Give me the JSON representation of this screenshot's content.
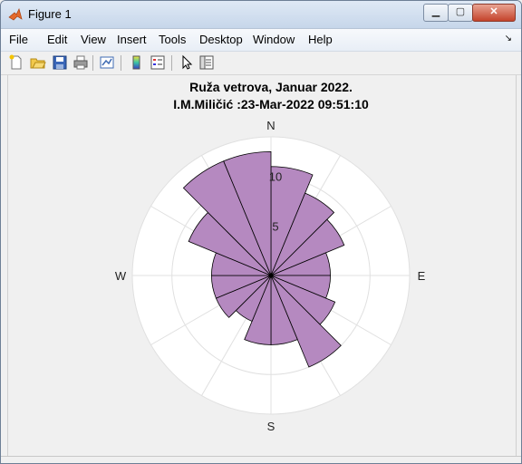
{
  "window": {
    "title": "Figure 1",
    "icons": {
      "app": "matlab-logo-icon",
      "minimize": "minimize-icon",
      "maximize": "maximize-icon",
      "close": "close-icon"
    }
  },
  "menu": {
    "items": [
      "File",
      "Edit",
      "View",
      "Insert",
      "Tools",
      "Desktop",
      "Window",
      "Help"
    ],
    "overflow_icon": "dock-arrow-icon"
  },
  "toolbar": {
    "icons": [
      "new-figure-icon",
      "open-file-icon",
      "save-icon",
      "print-icon",
      "link-plot-icon",
      "insert-colorbar-icon",
      "insert-legend-icon",
      "edit-plot-icon",
      "property-inspector-icon"
    ]
  },
  "chart_data": {
    "type": "polar-histogram",
    "title_line1": "Ruža vetrova, Januar 2022.",
    "title_line2": "I.M.Miličić :23-Mar-2022 09:51:10",
    "theta_labels": [
      "N",
      "E",
      "S",
      "W"
    ],
    "r_ticks": [
      5,
      10
    ],
    "r_tick_labels": [
      "5",
      "10"
    ],
    "rlim": [
      0,
      14
    ],
    "bin_width_deg": 22.5,
    "bins": [
      {
        "center_deg": 11.25,
        "value": 11
      },
      {
        "center_deg": 33.75,
        "value": 9
      },
      {
        "center_deg": 56.25,
        "value": 8
      },
      {
        "center_deg": 78.75,
        "value": 6
      },
      {
        "center_deg": 101.25,
        "value": 6
      },
      {
        "center_deg": 123.75,
        "value": 7
      },
      {
        "center_deg": 146.25,
        "value": 10
      },
      {
        "center_deg": 168.75,
        "value": 7
      },
      {
        "center_deg": 191.25,
        "value": 7
      },
      {
        "center_deg": 213.75,
        "value": 5
      },
      {
        "center_deg": 236.25,
        "value": 6
      },
      {
        "center_deg": 258.75,
        "value": 6
      },
      {
        "center_deg": 281.25,
        "value": 6
      },
      {
        "center_deg": 303.75,
        "value": 9
      },
      {
        "center_deg": 326.25,
        "value": 12.5
      },
      {
        "center_deg": 348.75,
        "value": 12.5
      }
    ],
    "colors": {
      "bar_fill": "#b589c0",
      "bar_edge": "#000000",
      "axes_bg": "#ffffff",
      "grid": "#e0e0e0"
    },
    "grid": true
  }
}
